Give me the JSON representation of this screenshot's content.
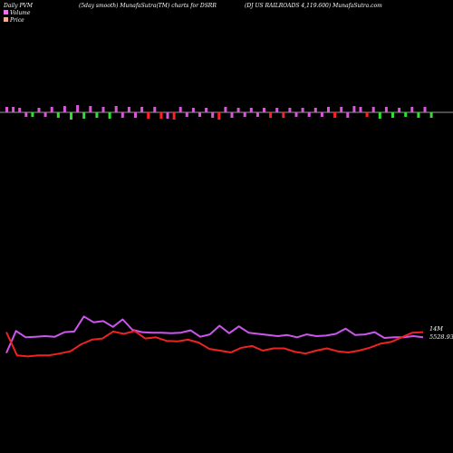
{
  "header": {
    "left": "Daily PVM",
    "mid": "(5day smooth) MunafaSutra(TM) charts for DSRR",
    "right": "(DJ US RAILROADS 4,119.600) MunafaSutra.com"
  },
  "legend": [
    {
      "label": "Volume",
      "color": "#ff66ff"
    },
    {
      "label": "Price",
      "color": "#ffaa88"
    }
  ],
  "chart_data": [
    {
      "type": "bar",
      "bars": [
        {
          "value": 6,
          "color": "#dd55dd"
        },
        {
          "value": 6,
          "color": "#dd55dd"
        },
        {
          "value": 5,
          "color": "#dd55dd"
        },
        {
          "value": -5,
          "color": "#dd55dd"
        },
        {
          "value": -5,
          "color": "#33dd33"
        },
        {
          "value": 5,
          "color": "#dd55dd"
        },
        {
          "value": -5,
          "color": "#dd55dd"
        },
        {
          "value": 6,
          "color": "#dd55dd"
        },
        {
          "value": -6,
          "color": "#33dd33"
        },
        {
          "value": 7,
          "color": "#dd55dd"
        },
        {
          "value": -8,
          "color": "#33dd33"
        },
        {
          "value": 8,
          "color": "#dd55dd"
        },
        {
          "value": -7,
          "color": "#33dd33"
        },
        {
          "value": 7,
          "color": "#dd55dd"
        },
        {
          "value": -6,
          "color": "#33dd33"
        },
        {
          "value": 6,
          "color": "#dd55dd"
        },
        {
          "value": -7,
          "color": "#33dd33"
        },
        {
          "value": 7,
          "color": "#dd55dd"
        },
        {
          "value": -6,
          "color": "#dd55dd"
        },
        {
          "value": 6,
          "color": "#dd55dd"
        },
        {
          "value": -6,
          "color": "#dd55dd"
        },
        {
          "value": 6,
          "color": "#dd55dd"
        },
        {
          "value": -7,
          "color": "#ff2222"
        },
        {
          "value": 6,
          "color": "#dd55dd"
        },
        {
          "value": -7,
          "color": "#ff2222"
        },
        {
          "value": -7,
          "color": "#dd55dd"
        },
        {
          "value": -8,
          "color": "#ff2222"
        },
        {
          "value": 6,
          "color": "#dd55dd"
        },
        {
          "value": -5,
          "color": "#dd55dd"
        },
        {
          "value": 5,
          "color": "#dd55dd"
        },
        {
          "value": -5,
          "color": "#dd55dd"
        },
        {
          "value": 5,
          "color": "#dd55dd"
        },
        {
          "value": -6,
          "color": "#dd55dd"
        },
        {
          "value": -8,
          "color": "#ff2222"
        },
        {
          "value": 6,
          "color": "#dd55dd"
        },
        {
          "value": -6,
          "color": "#dd55dd"
        },
        {
          "value": 5,
          "color": "#dd55dd"
        },
        {
          "value": -5,
          "color": "#dd55dd"
        },
        {
          "value": 5,
          "color": "#dd55dd"
        },
        {
          "value": -5,
          "color": "#dd55dd"
        },
        {
          "value": 5,
          "color": "#dd55dd"
        },
        {
          "value": -6,
          "color": "#ff2222"
        },
        {
          "value": 5,
          "color": "#dd55dd"
        },
        {
          "value": -6,
          "color": "#ff2222"
        },
        {
          "value": 5,
          "color": "#dd55dd"
        },
        {
          "value": -5,
          "color": "#dd55dd"
        },
        {
          "value": 5,
          "color": "#dd55dd"
        },
        {
          "value": -5,
          "color": "#dd55dd"
        },
        {
          "value": 5,
          "color": "#dd55dd"
        },
        {
          "value": -5,
          "color": "#dd55dd"
        },
        {
          "value": 6,
          "color": "#dd55dd"
        },
        {
          "value": -6,
          "color": "#ff2222"
        },
        {
          "value": 6,
          "color": "#dd55dd"
        },
        {
          "value": -6,
          "color": "#dd55dd"
        },
        {
          "value": 7,
          "color": "#dd55dd"
        },
        {
          "value": 6,
          "color": "#dd55dd"
        },
        {
          "value": -5,
          "color": "#ff2222"
        },
        {
          "value": 6,
          "color": "#dd55dd"
        },
        {
          "value": -7,
          "color": "#33dd33"
        },
        {
          "value": 6,
          "color": "#dd55dd"
        },
        {
          "value": -6,
          "color": "#33dd33"
        },
        {
          "value": 5,
          "color": "#dd55dd"
        },
        {
          "value": -5,
          "color": "#33dd33"
        },
        {
          "value": 6,
          "color": "#dd55dd"
        },
        {
          "value": -6,
          "color": "#33dd33"
        },
        {
          "value": 6,
          "color": "#dd55dd"
        },
        {
          "value": -6,
          "color": "#33dd33"
        }
      ]
    },
    {
      "type": "line",
      "series": [
        {
          "name": "Volume",
          "color": "#cc55ee",
          "end_label": "14M",
          "values": [
            35,
            73,
            62,
            63,
            64,
            63,
            71,
            72,
            98,
            88,
            90,
            80,
            93,
            75,
            71,
            70,
            70,
            69,
            70,
            74,
            63,
            67,
            82,
            69,
            81,
            70,
            68,
            66,
            64,
            66,
            62,
            67,
            64,
            65,
            68,
            77,
            66,
            67,
            71,
            61,
            62,
            62,
            64,
            62
          ]
        },
        {
          "name": "Price",
          "color": "#ee2222",
          "end_label": "5528.93",
          "values": [
            71,
            31,
            29,
            31,
            31,
            34,
            38,
            50,
            58,
            60,
            72,
            68,
            73,
            60,
            62,
            56,
            55,
            58,
            53,
            42,
            39,
            36,
            44,
            47,
            39,
            43,
            43,
            37,
            34,
            39,
            43,
            38,
            36,
            39,
            44,
            51,
            54,
            62,
            70,
            71
          ]
        }
      ]
    }
  ]
}
